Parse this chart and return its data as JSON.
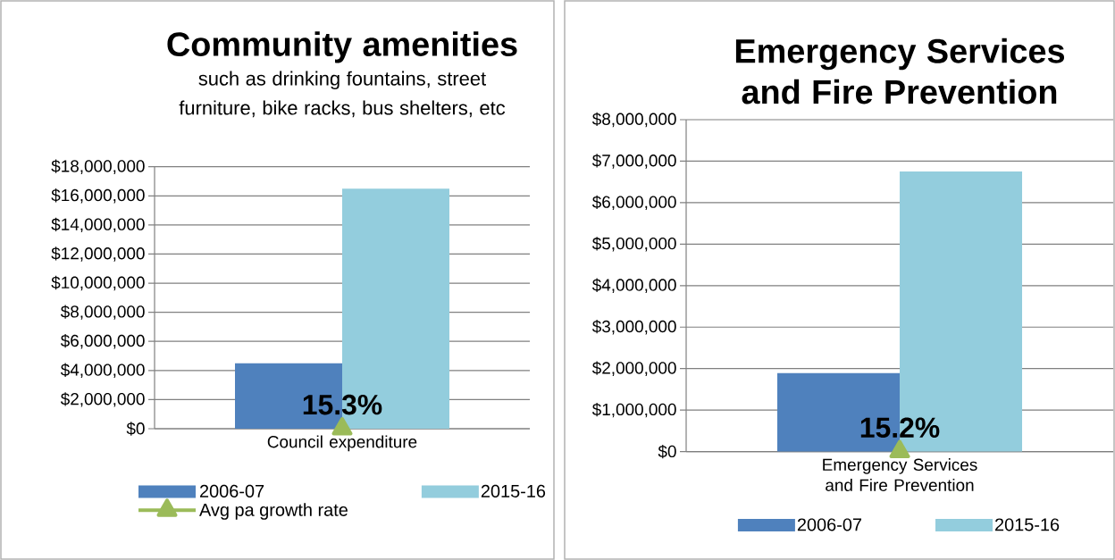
{
  "chart_data": [
    {
      "type": "bar",
      "title": "Community amenities",
      "subtitle": "such as drinking fountains, street furniture, bike racks, bus shelters, etc",
      "categories": [
        "Council expenditure"
      ],
      "series": [
        {
          "name": "2006-07",
          "color": "#4f81bd",
          "values": [
            4500000
          ]
        },
        {
          "name": "2015-16",
          "color": "#93cddd",
          "values": [
            16500000
          ]
        },
        {
          "name": "Avg pa growth rate",
          "type": "line",
          "color": "#9bbb59",
          "values": [
            0.153
          ],
          "value_labels": [
            "15.3%"
          ]
        }
      ],
      "marker": "triangle",
      "ylim": [
        0,
        18000000
      ],
      "yticks": [
        {
          "value": 0,
          "label": "$0"
        },
        {
          "value": 2000000,
          "label": "$2,000,000"
        },
        {
          "value": 4000000,
          "label": "$4,000,000"
        },
        {
          "value": 6000000,
          "label": "$6,000,000"
        },
        {
          "value": 8000000,
          "label": "$8,000,000"
        },
        {
          "value": 10000000,
          "label": "$10,000,000"
        },
        {
          "value": 12000000,
          "label": "$12,000,000"
        },
        {
          "value": 14000000,
          "label": "$14,000,000"
        },
        {
          "value": 16000000,
          "label": "$16,000,000"
        },
        {
          "value": 18000000,
          "label": "$18,000,000"
        }
      ],
      "grid": "y",
      "legend": "bottom"
    },
    {
      "type": "bar",
      "title": "Emergency Services and Fire Prevention",
      "categories": [
        "Emergency Services and Fire Prevention"
      ],
      "series": [
        {
          "name": "2006-07",
          "color": "#4f81bd",
          "values": [
            1890000
          ]
        },
        {
          "name": "2015-16",
          "color": "#93cddd",
          "values": [
            6750000
          ]
        },
        {
          "type": "line",
          "color": "#9bbb59",
          "values": [
            0.152
          ],
          "value_labels": [
            "15.2%"
          ]
        }
      ],
      "marker": "triangle",
      "ylim": [
        0,
        8000000
      ],
      "yticks": [
        {
          "value": 0,
          "label": "$0"
        },
        {
          "value": 1000000,
          "label": "$1,000,000"
        },
        {
          "value": 2000000,
          "label": "$2,000,000"
        },
        {
          "value": 3000000,
          "label": "$3,000,000"
        },
        {
          "value": 4000000,
          "label": "$4,000,000"
        },
        {
          "value": 5000000,
          "label": "$5,000,000"
        },
        {
          "value": 6000000,
          "label": "$6,000,000"
        },
        {
          "value": 7000000,
          "label": "$7,000,000"
        },
        {
          "value": 8000000,
          "label": "$8,000,000"
        }
      ],
      "grid": "y",
      "legend": "bottom"
    }
  ]
}
